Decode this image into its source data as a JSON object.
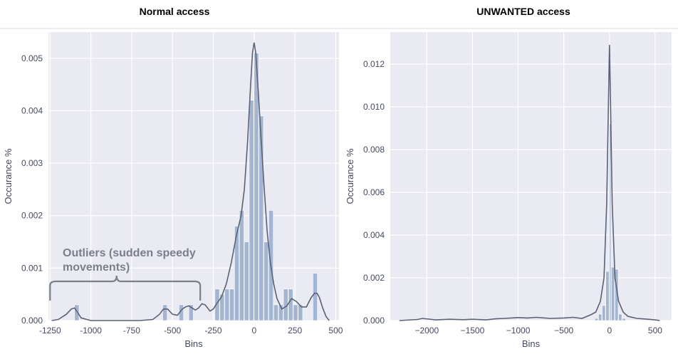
{
  "chart_data": [
    {
      "type": "histogram",
      "title": "Normal access",
      "xlabel": "Bins",
      "ylabel": "Occurance %",
      "xlim": [
        -1260,
        520
      ],
      "ylim": [
        0,
        0.0055
      ],
      "xticks": [
        -1250,
        -1000,
        -750,
        -500,
        -250,
        0,
        250,
        500
      ],
      "xtick_labels": [
        "-1250",
        "-1000",
        "-750",
        "-500",
        "-250",
        "0",
        "250",
        "500"
      ],
      "yticks": [
        0,
        0.001,
        0.002,
        0.003,
        0.004,
        0.005
      ],
      "ytick_labels": [
        "0.000",
        "0.001",
        "0.002",
        "0.003",
        "0.004",
        "0.005"
      ],
      "grid": true,
      "bins": [
        {
          "x0": -1100,
          "x1": -1070,
          "y": 0.0003
        },
        {
          "x0": -560,
          "x1": -530,
          "y": 0.0003
        },
        {
          "x0": -460,
          "x1": -430,
          "y": 0.0003
        },
        {
          "x0": -400,
          "x1": -370,
          "y": 0.0003
        },
        {
          "x0": -240,
          "x1": -210,
          "y": 0.0006
        },
        {
          "x0": -210,
          "x1": -180,
          "y": 0.0005
        },
        {
          "x0": -180,
          "x1": -150,
          "y": 0.0006
        },
        {
          "x0": -150,
          "x1": -120,
          "y": 0.0006
        },
        {
          "x0": -120,
          "x1": -90,
          "y": 0.0018
        },
        {
          "x0": -90,
          "x1": -60,
          "y": 0.0021
        },
        {
          "x0": -60,
          "x1": -30,
          "y": 0.0015
        },
        {
          "x0": -30,
          "x1": 0,
          "y": 0.0042
        },
        {
          "x0": 0,
          "x1": 30,
          "y": 0.0051
        },
        {
          "x0": 30,
          "x1": 60,
          "y": 0.0039
        },
        {
          "x0": 60,
          "x1": 90,
          "y": 0.0015
        },
        {
          "x0": 90,
          "x1": 120,
          "y": 0.0021
        },
        {
          "x0": 120,
          "x1": 150,
          "y": 0.0003
        },
        {
          "x0": 150,
          "x1": 180,
          "y": 0.0003
        },
        {
          "x0": 180,
          "x1": 210,
          "y": 0.0006
        },
        {
          "x0": 210,
          "x1": 240,
          "y": 0.0006
        },
        {
          "x0": 240,
          "x1": 270,
          "y": 0.0003
        },
        {
          "x0": 270,
          "x1": 300,
          "y": 0.0003
        },
        {
          "x0": 360,
          "x1": 390,
          "y": 0.0009
        }
      ],
      "kde": {
        "x": [
          -1240,
          -1200,
          -1150,
          -1120,
          -1100,
          -1080,
          -1060,
          -1000,
          -900,
          -800,
          -700,
          -620,
          -580,
          -555,
          -530,
          -500,
          -470,
          -440,
          -420,
          -400,
          -380,
          -360,
          -340,
          -320,
          -300,
          -270,
          -250,
          -230,
          -200,
          -170,
          -140,
          -110,
          -80,
          -60,
          -40,
          -25,
          -10,
          0,
          10,
          25,
          40,
          60,
          80,
          100,
          120,
          140,
          170,
          200,
          230,
          260,
          290,
          320,
          350,
          370,
          385,
          400,
          420,
          440,
          460
        ],
        "y": [
          0,
          2e-05,
          0.00012,
          0.00022,
          0.00024,
          0.00015,
          5e-05,
          0,
          0,
          0,
          0,
          2e-05,
          0.00012,
          0.00022,
          0.00022,
          0.00012,
          0.0001,
          0.00022,
          0.00026,
          0.00028,
          0.00024,
          0.0002,
          0.00024,
          0.00032,
          0.0003,
          0.00018,
          0.00022,
          0.00032,
          0.00045,
          0.0007,
          0.0011,
          0.0016,
          0.002,
          0.0025,
          0.0034,
          0.0043,
          0.0051,
          0.0053,
          0.0051,
          0.0044,
          0.0036,
          0.0026,
          0.0017,
          0.0011,
          0.0007,
          0.00042,
          0.00022,
          0.00028,
          0.00042,
          0.00036,
          0.00026,
          0.00026,
          0.00044,
          0.00052,
          0.00052,
          0.00044,
          0.00024,
          8e-05,
          0
        ]
      },
      "annotation": {
        "lines": [
          "Outliers (sudden speedy",
          "movements)"
        ],
        "brace_x": [
          -1250,
          -330
        ]
      }
    },
    {
      "type": "histogram",
      "title": "UNWANTED access",
      "xlabel": "Bins",
      "ylabel": "Occurance %",
      "xlim": [
        -2400,
        680
      ],
      "ylim": [
        0,
        0.0135
      ],
      "xticks": [
        -2000,
        -1500,
        -1000,
        -500,
        0,
        500
      ],
      "xtick_labels": [
        "−2000",
        "−1500",
        "−1000",
        "−500",
        "0",
        "500"
      ],
      "yticks": [
        0,
        0.002,
        0.004,
        0.006,
        0.008,
        0.01,
        0.012
      ],
      "ytick_labels": [
        "0.000",
        "0.002",
        "0.004",
        "0.006",
        "0.008",
        "0.010",
        "0.012"
      ],
      "grid": true,
      "bins": [
        {
          "x0": -160,
          "x1": -120,
          "y": 0.0001
        },
        {
          "x0": -120,
          "x1": -80,
          "y": 0.0003
        },
        {
          "x0": -80,
          "x1": -40,
          "y": 0.0007
        },
        {
          "x0": -40,
          "x1": 0,
          "y": 0.0023
        },
        {
          "x0": 0,
          "x1": 20,
          "y": 0.0092
        },
        {
          "x0": 20,
          "x1": 60,
          "y": 0.0025
        },
        {
          "x0": 60,
          "x1": 100,
          "y": 0.0024
        },
        {
          "x0": 100,
          "x1": 140,
          "y": 0.0003
        },
        {
          "x0": 140,
          "x1": 180,
          "y": 0.0001
        }
      ],
      "kde": {
        "x": [
          -2300,
          -2100,
          -2050,
          -1900,
          -1750,
          -1600,
          -1500,
          -1350,
          -1250,
          -1150,
          -1000,
          -900,
          -800,
          -650,
          -500,
          -400,
          -300,
          -200,
          -150,
          -100,
          -60,
          -30,
          -10,
          0,
          10,
          30,
          60,
          100,
          150,
          200,
          300,
          400,
          500,
          550
        ],
        "y": [
          0,
          5e-05,
          0.0001,
          3e-05,
          6e-05,
          4e-05,
          6e-05,
          3e-05,
          8e-05,
          0.0001,
          0.00014,
          0.00012,
          0.00015,
          0.0001,
          0.00012,
          0.00015,
          0.0001,
          0.00028,
          0.0004,
          0.0009,
          0.002,
          0.0055,
          0.0105,
          0.0129,
          0.0105,
          0.0055,
          0.002,
          0.0009,
          0.0004,
          0.0002,
          0.0001,
          7e-05,
          3e-05,
          0
        ]
      }
    }
  ]
}
